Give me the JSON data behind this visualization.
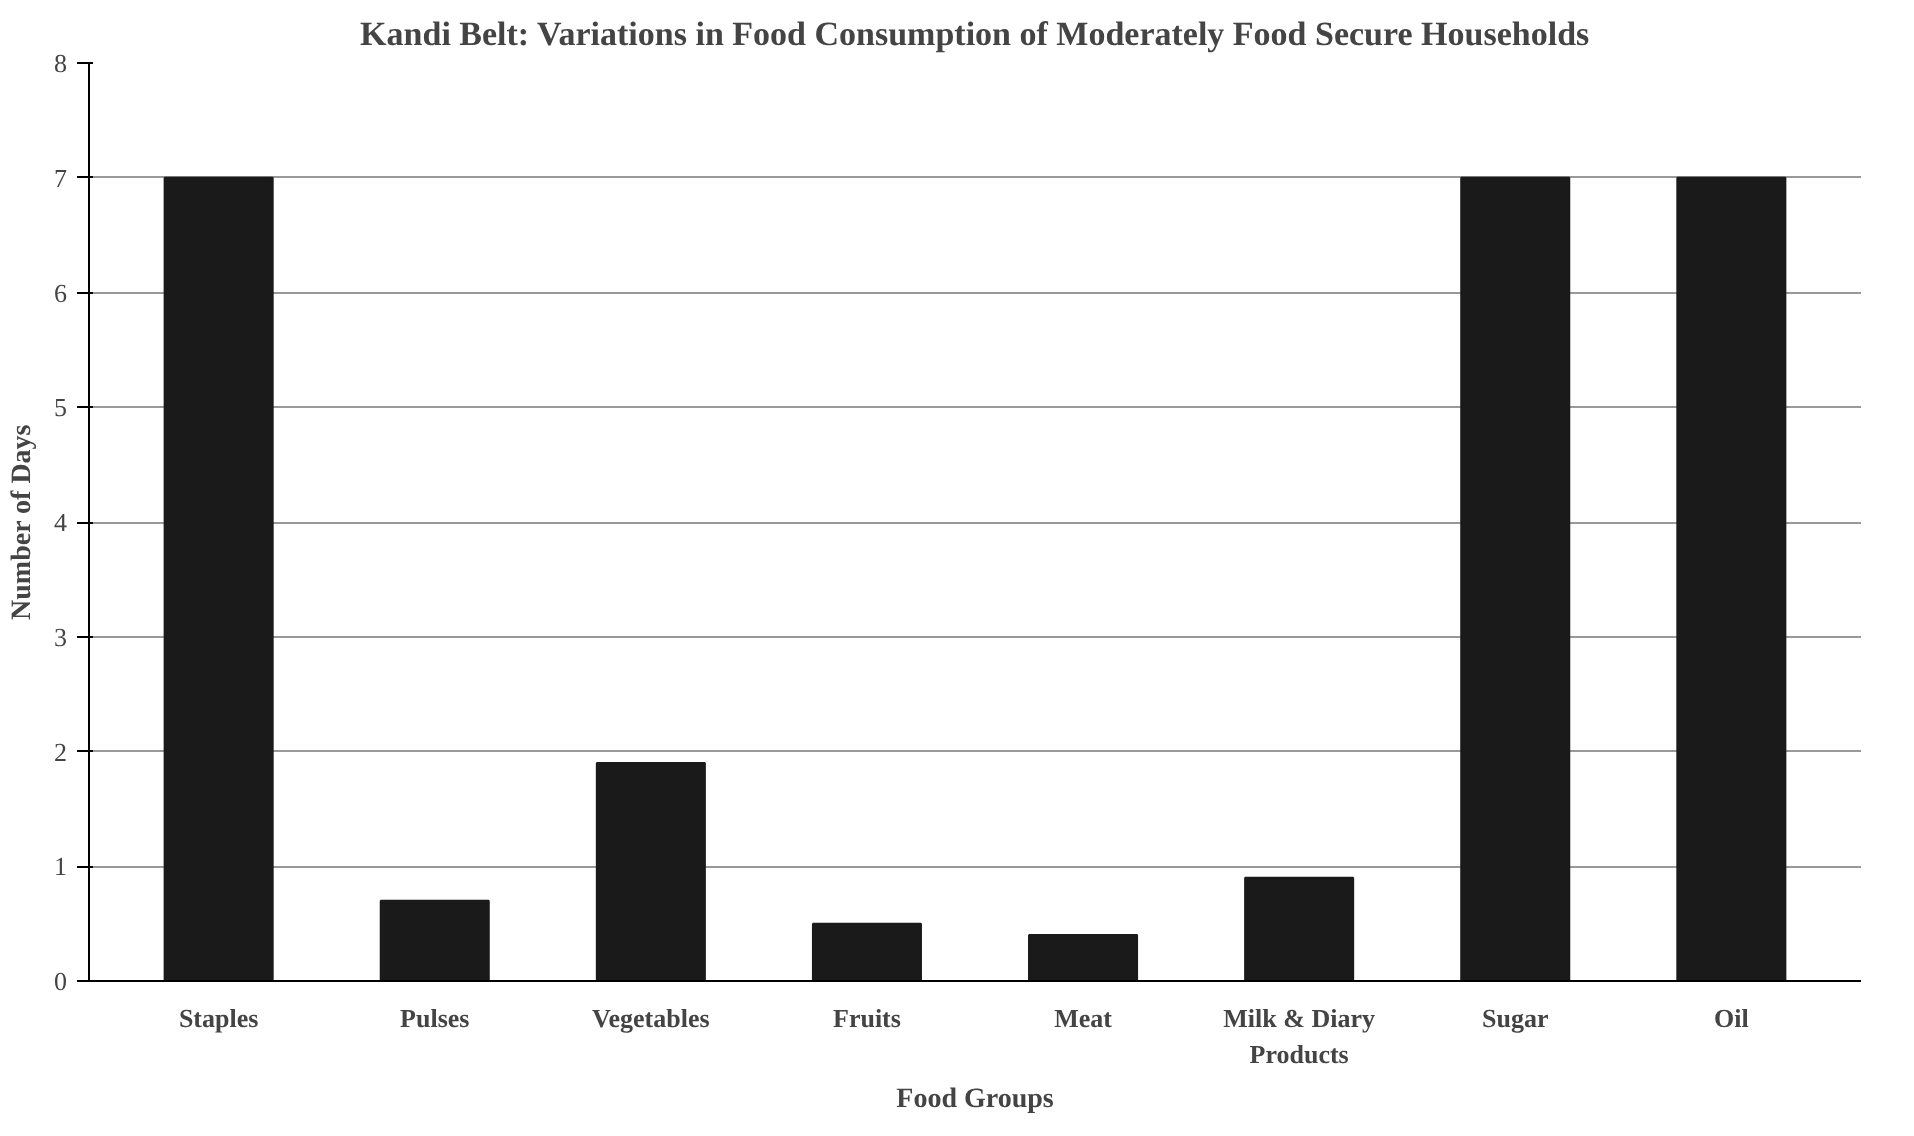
{
  "chart_data": {
    "type": "bar",
    "title": "Kandi Belt: Variations in Food Consumption of Moderately Food Secure Households",
    "xlabel": "Food Groups",
    "ylabel": "Number of Days",
    "categories": [
      "Staples",
      "Pulses",
      "Vegetables",
      "Fruits",
      "Meat",
      "Milk & Diary Products",
      "Sugar",
      "Oil"
    ],
    "values": [
      7,
      0.7,
      1.9,
      0.5,
      0.4,
      0.9,
      7,
      7
    ],
    "color": "#1a1a1a",
    "ylim": [
      0,
      8
    ],
    "yticks": [
      0,
      1,
      2,
      3,
      4,
      5,
      6,
      7,
      8
    ],
    "grid": "y"
  }
}
